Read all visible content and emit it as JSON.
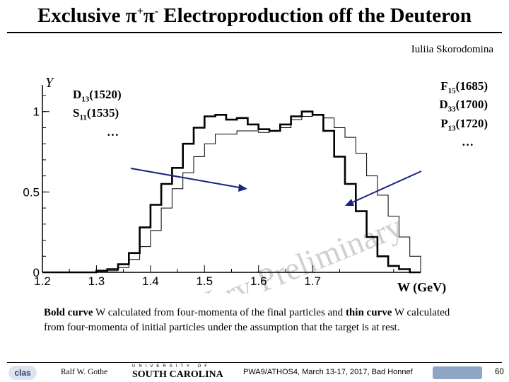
{
  "slide": {
    "title_pre": "Exclusive π",
    "title_sup1": "+",
    "title_mid": "π",
    "title_sup2": "-",
    "title_post": " Electroproduction off the Deuteron",
    "author": "Iuliia Skorodomina"
  },
  "annotations": {
    "left": [
      {
        "name": "D",
        "sub": "13",
        "mass": "(1520)"
      },
      {
        "name": "S",
        "sub": "11",
        "mass": "(1535)"
      }
    ],
    "left_ellipsis": "…",
    "right": [
      {
        "name": "F",
        "sub": "15",
        "mass": "(1685)"
      },
      {
        "name": "D",
        "sub": "33",
        "mass": "(1700)"
      },
      {
        "name": "P",
        "sub": "13",
        "mass": "(1720)"
      }
    ],
    "right_ellipsis": "…",
    "watermark": "Very Preliminary",
    "w_label": "W (GeV)"
  },
  "chart_data": {
    "type": "line",
    "ylabel": "Y",
    "xlabel": "",
    "xlim": [
      1.2,
      1.9
    ],
    "ylim": [
      0,
      1.1
    ],
    "x_ticks": [
      "1.2",
      "1.3",
      "1.4",
      "1.5",
      "1.6",
      "1.7"
    ],
    "y_ticks": [
      "0",
      "0.5",
      "1"
    ],
    "x": [
      1.2,
      1.22,
      1.24,
      1.26,
      1.28,
      1.3,
      1.32,
      1.34,
      1.36,
      1.38,
      1.4,
      1.42,
      1.44,
      1.46,
      1.48,
      1.5,
      1.52,
      1.54,
      1.56,
      1.58,
      1.6,
      1.62,
      1.64,
      1.66,
      1.68,
      1.7,
      1.72,
      1.74,
      1.76,
      1.78,
      1.8,
      1.82,
      1.84,
      1.86,
      1.88,
      1.9
    ],
    "series": [
      {
        "line": "bold",
        "values": [
          0,
          0,
          0,
          0,
          0,
          0.01,
          0.02,
          0.05,
          0.12,
          0.28,
          0.42,
          0.55,
          0.65,
          0.8,
          0.9,
          0.97,
          0.98,
          0.95,
          0.96,
          0.92,
          0.89,
          0.88,
          0.92,
          0.97,
          1.0,
          0.98,
          0.88,
          0.72,
          0.55,
          0.38,
          0.22,
          0.1,
          0.04,
          0.02,
          0,
          0
        ]
      },
      {
        "line": "thin",
        "values": [
          0,
          0,
          0,
          0,
          0,
          0,
          0.01,
          0.03,
          0.08,
          0.16,
          0.26,
          0.4,
          0.52,
          0.62,
          0.72,
          0.8,
          0.86,
          0.86,
          0.88,
          0.88,
          0.87,
          0.88,
          0.9,
          0.95,
          0.97,
          0.98,
          0.96,
          0.9,
          0.84,
          0.74,
          0.6,
          0.48,
          0.35,
          0.22,
          0.1,
          0
        ]
      }
    ]
  },
  "caption": {
    "bold1": "Bold curve",
    "text1": " W calculated from four-momenta of the final particles and ",
    "bold2": "thin curve",
    "text2": " W calculated from four-momenta of initial particles under the assumption that the target is at rest."
  },
  "footer": {
    "logo_left": "clas",
    "author": "Ralf  W. Gothe",
    "university_top": "UNIVERSITY OF",
    "university": "SOUTH CAROLINA",
    "conference": "PWA9/ATHOS4, March 13-17, 2017, Bad Honnef",
    "page": "60"
  }
}
